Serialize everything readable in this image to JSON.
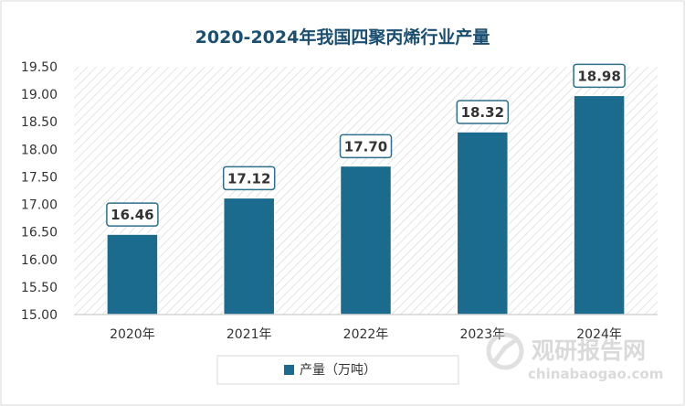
{
  "chart_data": {
    "type": "bar",
    "title": "2020-2024年我国四聚丙烯行业产量",
    "xlabel": "",
    "ylabel": "",
    "categories": [
      "2020年",
      "2021年",
      "2022年",
      "2023年",
      "2024年"
    ],
    "series": [
      {
        "name": "产量（万吨）",
        "values": [
          16.46,
          17.12,
          17.7,
          18.32,
          18.98
        ]
      }
    ],
    "data_labels": [
      "16.46",
      "17.12",
      "17.70",
      "18.32",
      "18.98"
    ],
    "ylim": [
      15.0,
      19.5
    ],
    "y_ticks": [
      "15.00",
      "15.50",
      "16.00",
      "16.50",
      "17.00",
      "17.50",
      "18.00",
      "18.50",
      "19.00",
      "19.50"
    ],
    "grid": false,
    "plot_background": "diagonal-hatch",
    "legend_position": "bottom",
    "colors": {
      "bar": "#1b6b8e",
      "title": "#1b4f72",
      "text": "#333333"
    }
  },
  "watermark": {
    "brand_cn": "观研报告网",
    "brand_url": "chinabaogao.com"
  }
}
